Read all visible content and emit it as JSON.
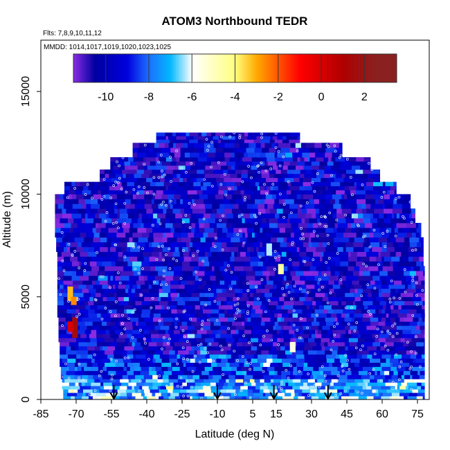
{
  "chart_data": {
    "type": "heatmap",
    "title": "ATOM3 Northbound TEDR",
    "flights_note": "Flts: 7,8,9,10,11,12",
    "dates_note": "MMDD: 1014,1017,1019,1020,1023,1025",
    "xlabel": "Latitude (deg N)",
    "ylabel": "Altitude (m)",
    "xlim": [
      -85,
      80
    ],
    "ylim": [
      0,
      17500
    ],
    "x_ticks": [
      -85,
      -70,
      -55,
      -40,
      -25,
      -10,
      5,
      15,
      30,
      45,
      60,
      75
    ],
    "x_tick_labels": [
      "-85",
      "-70",
      "-55",
      "-40",
      "-25",
      "-10",
      "5",
      "15",
      "30",
      "45",
      "60",
      "75"
    ],
    "y_ticks": [
      0,
      5000,
      10000,
      15000
    ],
    "y_tick_labels": [
      "0",
      "5000",
      "10000",
      "15000"
    ],
    "colorbar": {
      "range": [
        -11.5,
        3.5
      ],
      "ticks": [
        -10,
        -8,
        -6,
        -4,
        -2,
        0,
        2
      ],
      "tick_labels": [
        "-10",
        "-8",
        "-6",
        "-4",
        "-2",
        "0",
        "2"
      ],
      "colors": [
        "#8a2be2",
        "#0000a0",
        "#0000dd",
        "#1e6fff",
        "#00b8ff",
        "#ffffff",
        "#ffff80",
        "#ffaa00",
        "#ff0000",
        "#b00000",
        "#8b2020"
      ],
      "bounds": [
        -11.5,
        -10.5,
        -9,
        -8,
        -7,
        -6,
        -4,
        -3,
        -1,
        1,
        2.5,
        3.5
      ]
    },
    "arrow_latitudes": [
      -54,
      -10,
      14,
      37
    ],
    "coverage": {
      "altitude_band_tops": [
        500,
        1000,
        1600,
        2200,
        2800,
        3400,
        4000,
        4600,
        5200,
        5800,
        6500,
        7200,
        7900,
        8600,
        9300,
        10000,
        10600,
        11200,
        11800,
        12500,
        13000
      ],
      "lat_min": [
        -75.5,
        -76.0,
        -76.5,
        -77.0,
        -77.0,
        -77.5,
        -77.5,
        -78.0,
        -78.0,
        -78.0,
        -78.0,
        -78.0,
        -78.5,
        -79.0,
        -79.0,
        -79.0,
        -75.0,
        -60.0,
        -55.5,
        -46.0,
        -36.0
      ],
      "lat_max": [
        78.0,
        78.0,
        78.0,
        78.0,
        78.0,
        78.0,
        78.0,
        78.0,
        78.0,
        78.0,
        78.0,
        77.5,
        77.5,
        76.5,
        74.0,
        72.0,
        66.0,
        59.0,
        55.0,
        43.0,
        25.0
      ]
    },
    "hotspots": [
      {
        "lat": -70.5,
        "alt_lo": 3000,
        "alt_hi": 4000,
        "value": 1.5
      },
      {
        "lat": -72.5,
        "alt_lo": 3300,
        "alt_hi": 3800,
        "value": 0.0
      },
      {
        "lat": -72.5,
        "alt_lo": 4800,
        "alt_hi": 5500,
        "value": -3.2
      },
      {
        "lat": -71.0,
        "alt_lo": 4600,
        "alt_hi": 5000,
        "value": -2.6
      },
      {
        "lat": 17.0,
        "alt_lo": 6100,
        "alt_hi": 6600,
        "value": -4.5
      },
      {
        "lat": 22.0,
        "alt_lo": 2300,
        "alt_hi": 2800,
        "value": -5.5
      },
      {
        "lat": 12.0,
        "alt_lo": 7000,
        "alt_hi": 7600,
        "value": -6.3
      }
    ]
  }
}
